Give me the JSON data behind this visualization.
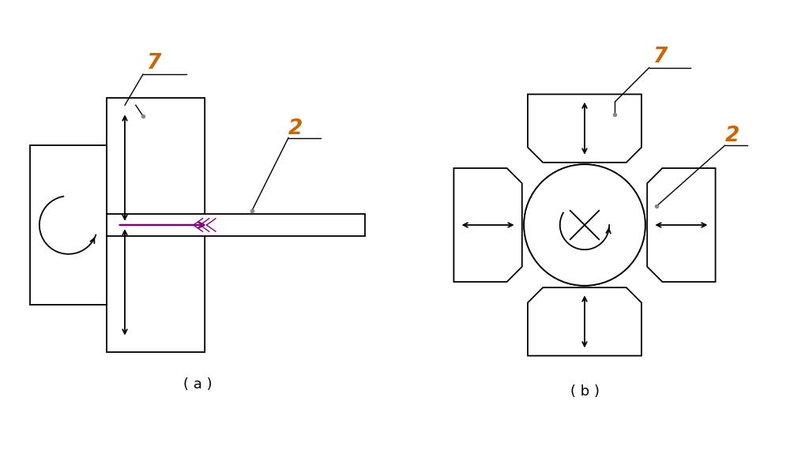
{
  "bg_color": "#ffffff",
  "line_color": "#000000",
  "arrow_color": "#000000",
  "label_color_7": "#cc6600",
  "label_color_2": "#cc6600",
  "fig_label_a": "( a )",
  "fig_label_b": "( b )"
}
